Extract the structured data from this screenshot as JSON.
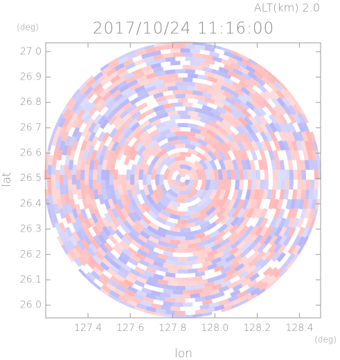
{
  "chart_data": {
    "type": "ppi",
    "title": "2017/10/24 11:16:00",
    "subtitle": "ALT(km) 2.0",
    "x_label": "lon",
    "y_label": "lat",
    "x_unit": "(deg)",
    "y_unit": "(deg)",
    "xlim": [
      127.2,
      128.5
    ],
    "ylim": [
      25.95,
      27.035
    ],
    "xticks": [
      127.4,
      127.6,
      127.8,
      {
        "value": 128.0,
        "label": "128.0"
      },
      128.2,
      128.4
    ],
    "yticks": [
      {
        "value": 26.0,
        "label": "26.0"
      },
      26.1,
      26.2,
      26.3,
      26.4,
      26.5,
      26.6,
      26.7,
      26.8,
      26.9,
      {
        "value": 27.0,
        "label": "27.0"
      }
    ]
  }
}
